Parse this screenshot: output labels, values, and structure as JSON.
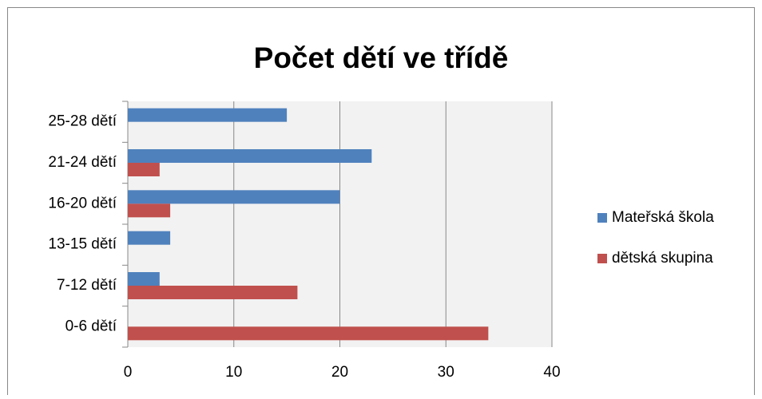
{
  "chart_data": {
    "type": "bar",
    "orientation": "horizontal",
    "title": "Počet dětí ve třídě",
    "categories": [
      "0-6 dětí",
      "7-12 dětí",
      "13-15 dětí",
      "16-20 dětí",
      "21-24 dětí",
      "25-28 dětí"
    ],
    "series": [
      {
        "name": "Mateřská škola",
        "color": "#4f81bd",
        "values": [
          0,
          3,
          4,
          20,
          23,
          15
        ]
      },
      {
        "name": "dětská skupina",
        "color": "#c0504d",
        "values": [
          34,
          16,
          0,
          4,
          3,
          0
        ]
      }
    ],
    "xlim": [
      0,
      40
    ],
    "xticks": [
      0,
      10,
      20,
      30,
      40
    ],
    "grid": true,
    "legend": "right"
  }
}
